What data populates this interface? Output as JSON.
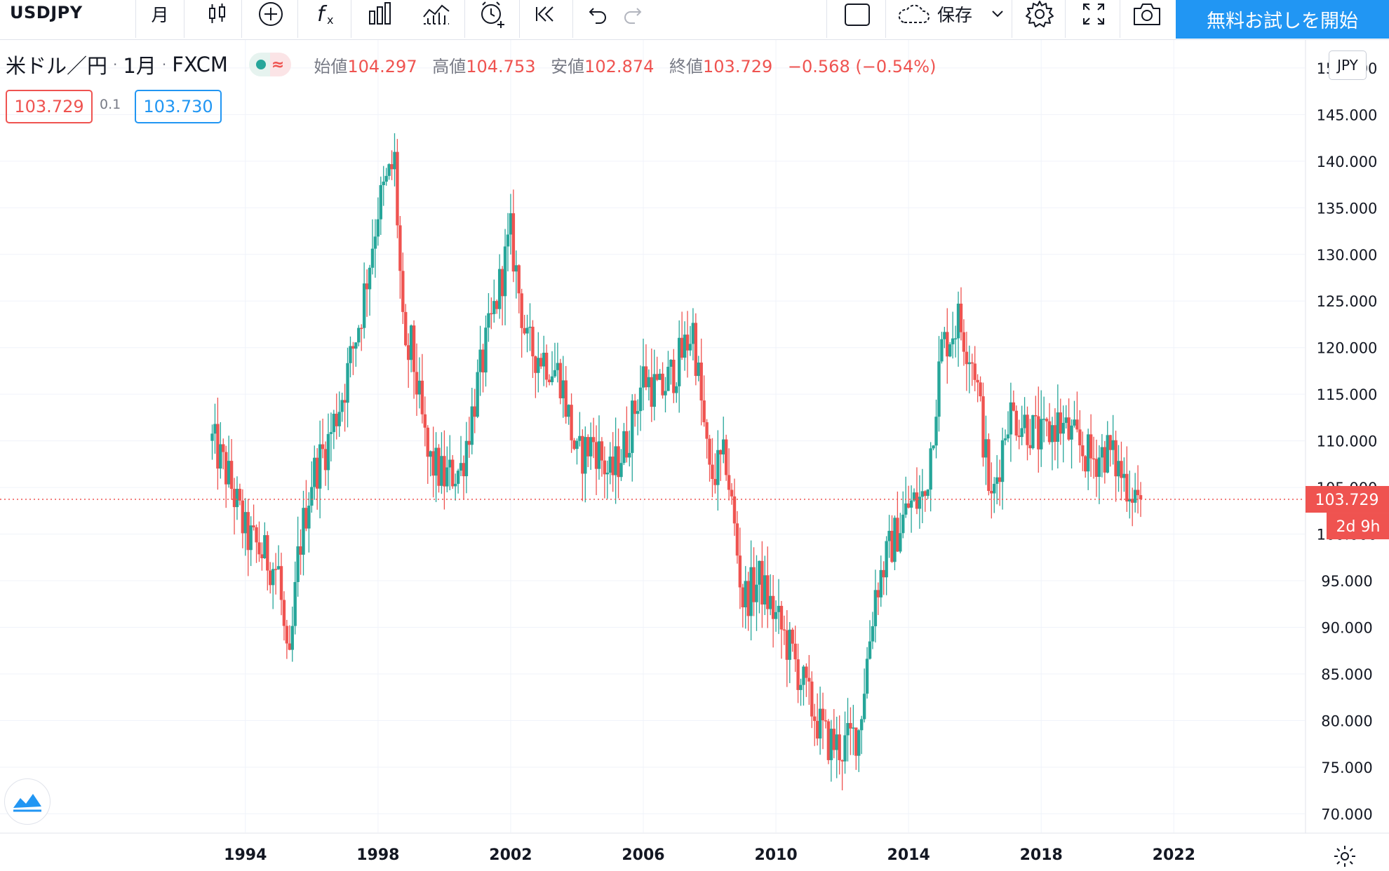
{
  "toolbar": {
    "symbol": "USDJPY",
    "interval": "月",
    "save_label": "保存",
    "try_button": "無料お試しを開始"
  },
  "legend": {
    "title": "米ドル／円",
    "interval": "1月",
    "source": "FXCM",
    "open_label": "始値",
    "open_value": "104.297",
    "high_label": "高値",
    "high_value": "104.753",
    "low_label": "安値",
    "low_value": "102.874",
    "close_label": "終値",
    "close_value": "103.729",
    "change": "−0.568 (−0.54%)"
  },
  "trade": {
    "sell_price": "103.729",
    "spread": "0.1",
    "buy_price": "103.730"
  },
  "currency_button": "JPY",
  "last_price_label": "103.729",
  "countdown_label": "2d 9h",
  "colors": {
    "up": "#26a69a",
    "down": "#ef5350",
    "accent": "#2196f3"
  },
  "chart_data": {
    "type": "candlestick",
    "title": "米ドル／円",
    "interval": "1月",
    "y_ticks": [
      "70.000",
      "75.000",
      "80.000",
      "85.000",
      "90.000",
      "95.000",
      "100.000",
      "105.000",
      "110.000",
      "115.000",
      "120.000",
      "125.000",
      "130.000",
      "135.000",
      "140.000",
      "145.000",
      "150.000"
    ],
    "x_ticks": [
      "1994",
      "1998",
      "2002",
      "2006",
      "2010",
      "2014",
      "2018",
      "2022"
    ],
    "ylim": [
      68,
      153
    ],
    "xlim": [
      1986.6,
      2025.95
    ],
    "last_price": 103.729,
    "grid": true,
    "series": [
      {
        "name": "USDJPY",
        "x": [
          1993.0,
          1993.5,
          1994.0,
          1994.5,
          1995.0,
          1995.3,
          1995.6,
          1996.0,
          1996.5,
          1997.0,
          1997.5,
          1998.0,
          1998.5,
          1998.8,
          1999.0,
          1999.5,
          2000.0,
          2000.5,
          2001.0,
          2001.5,
          2002.0,
          2002.5,
          2003.0,
          2003.5,
          2004.0,
          2004.5,
          2005.0,
          2005.5,
          2006.0,
          2006.5,
          2007.0,
          2007.5,
          2008.0,
          2008.5,
          2009.0,
          2009.5,
          2010.0,
          2010.5,
          2011.0,
          2011.5,
          2012.0,
          2012.5,
          2013.0,
          2013.5,
          2014.0,
          2014.5,
          2015.0,
          2015.5,
          2016.0,
          2016.5,
          2017.0,
          2017.5,
          2018.0,
          2018.5,
          2019.0,
          2019.5,
          2020.0,
          2020.5,
          2021.0
        ],
        "values": [
          110.0,
          106.0,
          100.0,
          98.0,
          96.0,
          84.0,
          98.0,
          106.0,
          110.0,
          116.0,
          124.0,
          135.0,
          140.0,
          118.0,
          120.0,
          108.0,
          106.0,
          107.0,
          116.0,
          124.0,
          132.0,
          120.0,
          119.0,
          117.0,
          108.0,
          110.0,
          106.0,
          110.0,
          117.0,
          115.0,
          118.0,
          122.0,
          106.0,
          108.0,
          93.0,
          95.0,
          91.0,
          87.0,
          82.0,
          78.0,
          77.0,
          79.0,
          94.0,
          99.0,
          103.0,
          104.0,
          120.0,
          123.0,
          118.0,
          103.0,
          113.0,
          112.0,
          110.0,
          112.0,
          110.0,
          108.0,
          109.0,
          106.0,
          103.7
        ]
      }
    ]
  }
}
